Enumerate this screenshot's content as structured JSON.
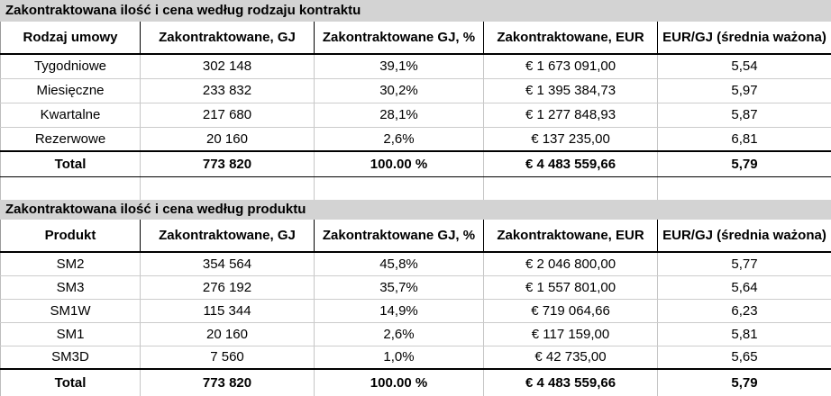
{
  "colors": {
    "title_bar_bg": "#d3d3d3",
    "grid_line": "#c6c6c6",
    "strong_rule": "#000000"
  },
  "table1": {
    "title": "Zakontraktowana ilość i cena według rodzaju kontraktu",
    "headers": [
      "Rodzaj umowy",
      "Zakontraktowane, GJ",
      "Zakontraktowane GJ, %",
      "Zakontraktowane, EUR",
      "EUR/GJ (średnia ważona)"
    ],
    "rows": [
      [
        "Tygodniowe",
        "302 148",
        "39,1%",
        "€ 1 673 091,00",
        "5,54"
      ],
      [
        "Miesięczne",
        "233 832",
        "30,2%",
        "€ 1 395 384,73",
        "5,97"
      ],
      [
        "Kwartalne",
        "217 680",
        "28,1%",
        "€ 1 277 848,93",
        "5,87"
      ],
      [
        "Rezerwowe",
        "20 160",
        "2,6%",
        "€ 137 235,00",
        "6,81"
      ]
    ],
    "total": [
      "Total",
      "773 820",
      "100.00 %",
      "€ 4 483 559,66",
      "5,79"
    ]
  },
  "table2": {
    "title": "Zakontraktowana ilość i cena według produktu",
    "headers": [
      "Produkt",
      "Zakontraktowane, GJ",
      "Zakontraktowane GJ, %",
      "Zakontraktowane, EUR",
      "EUR/GJ (średnia ważona)"
    ],
    "rows": [
      [
        "SM2",
        "354 564",
        "45,8%",
        "€ 2 046 800,00",
        "5,77"
      ],
      [
        "SM3",
        "276 192",
        "35,7%",
        "€ 1 557 801,00",
        "5,64"
      ],
      [
        "SM1W",
        "115 344",
        "14,9%",
        "€ 719 064,66",
        "6,23"
      ],
      [
        "SM1",
        "20 160",
        "2,6%",
        "€ 117 159,00",
        "5,81"
      ],
      [
        "SM3D",
        "7 560",
        "1,0%",
        "€ 42 735,00",
        "5,65"
      ]
    ],
    "total": [
      "Total",
      "773 820",
      "100.00 %",
      "€ 4 483 559,66",
      "5,79"
    ]
  }
}
